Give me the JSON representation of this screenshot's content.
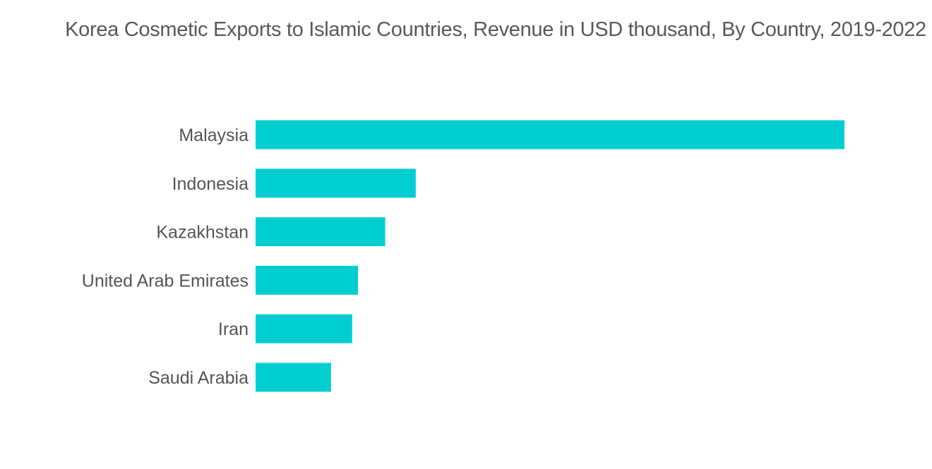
{
  "chart_data": {
    "type": "bar",
    "orientation": "horizontal",
    "title": "Korea Cosmetic Exports to Islamic Countries, Revenue in USD thousand, By Country, 2019-2022",
    "categories": [
      "Malaysia",
      "Indonesia",
      "Kazakhstan",
      "United Arab Emirates",
      "Iran",
      "Saudi Arabia"
    ],
    "values": [
      100,
      27.2,
      22.0,
      17.4,
      16.4,
      12.8
    ],
    "value_note": "relative scale; no axis or data labels printed",
    "xlim": [
      0,
      100
    ],
    "grid": false,
    "legend": "none",
    "bar_color": "#00CED1"
  }
}
